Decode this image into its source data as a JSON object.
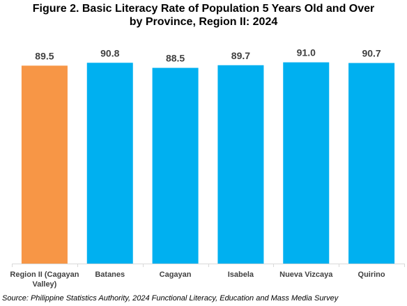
{
  "chart_data": {
    "type": "bar",
    "title_line1": "Figure 2. Basic Literacy Rate of Population 5 Years Old and Over",
    "title_line2": "by Province, Region II: 2024",
    "categories": [
      "Region II (Cagayan Valley)",
      "Batanes",
      "Cagayan",
      "Isabela",
      "Nueva Vizcaya",
      "Quirino"
    ],
    "category_label_lines": [
      [
        "Region II (Cagayan",
        "Valley)"
      ],
      [
        "Batanes"
      ],
      [
        "Cagayan"
      ],
      [
        "Isabela"
      ],
      [
        "Nueva Vizcaya"
      ],
      [
        "Quirino"
      ]
    ],
    "values": [
      89.5,
      90.8,
      88.5,
      89.7,
      91.0,
      90.7
    ],
    "data_labels": [
      "89.5",
      "90.8",
      "88.5",
      "89.7",
      "91.0",
      "90.7"
    ],
    "bar_colors": [
      "#F79646",
      "#00B0F0",
      "#00B0F0",
      "#00B0F0",
      "#00B0F0",
      "#00B0F0"
    ],
    "xlabel": "",
    "ylabel": "",
    "ylim": [
      0,
      100
    ],
    "grid": false,
    "legend": "none"
  },
  "source": "Source: Philippine Statistics Authority, 2024 Functional Literacy, Education and Mass Media Survey"
}
